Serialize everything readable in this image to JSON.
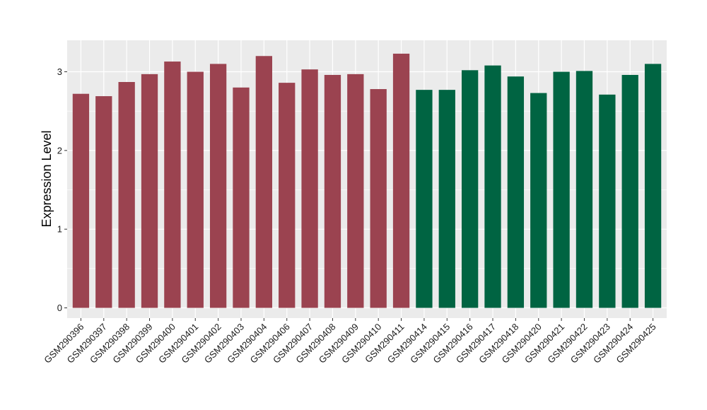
{
  "chart_data": {
    "type": "bar",
    "title": "",
    "xlabel": "",
    "ylabel": "Expression Level",
    "ylim": [
      -0.13,
      3.4
    ],
    "yticks": [
      0,
      1,
      2,
      3
    ],
    "grid": true,
    "legend": "none",
    "categories": [
      "GSM290396",
      "GSM290397",
      "GSM290398",
      "GSM290399",
      "GSM290400",
      "GSM290401",
      "GSM290402",
      "GSM290403",
      "GSM290404",
      "GSM290406",
      "GSM290407",
      "GSM290408",
      "GSM290409",
      "GSM290410",
      "GSM290411",
      "GSM290414",
      "GSM290415",
      "GSM290416",
      "GSM290417",
      "GSM290418",
      "GSM290420",
      "GSM290421",
      "GSM290422",
      "GSM290423",
      "GSM290424",
      "GSM290425"
    ],
    "values": [
      2.72,
      2.69,
      2.87,
      2.97,
      3.13,
      3.0,
      3.1,
      2.8,
      3.2,
      2.86,
      3.03,
      2.96,
      2.97,
      2.78,
      3.23,
      2.77,
      2.77,
      3.02,
      3.08,
      2.94,
      2.73,
      3.0,
      3.01,
      2.71,
      2.96,
      3.1
    ],
    "groups": [
      "a",
      "a",
      "a",
      "a",
      "a",
      "a",
      "a",
      "a",
      "a",
      "a",
      "a",
      "a",
      "a",
      "a",
      "a",
      "b",
      "b",
      "b",
      "b",
      "b",
      "b",
      "b",
      "b",
      "b",
      "b",
      "b"
    ],
    "group_colors": {
      "a": "#9b4350",
      "b": "#006442"
    },
    "panel_background": "#ebebeb",
    "grid_color": "#ffffff"
  }
}
